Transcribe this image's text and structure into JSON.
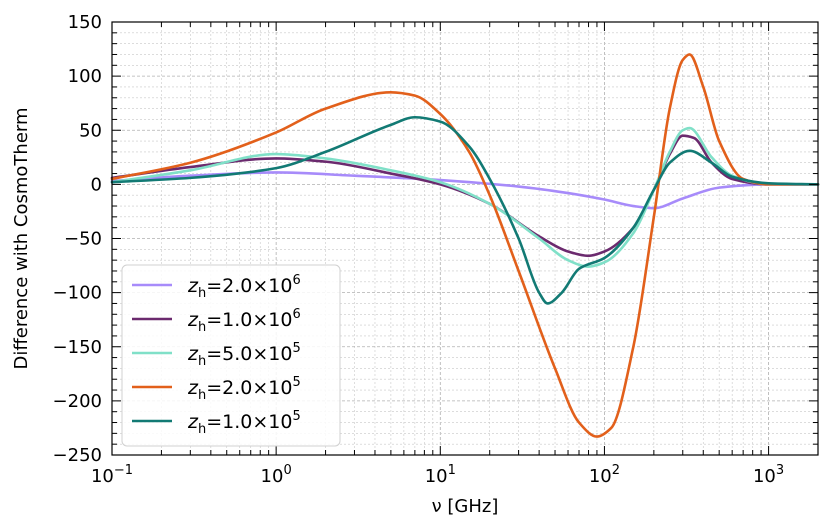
{
  "chart_data": {
    "type": "line",
    "xscale": "log",
    "xlim": [
      0.1,
      2000
    ],
    "ylim": [
      -250,
      150
    ],
    "xlabel": "ν [GHz]",
    "ylabel": "Difference with CosmoTherm",
    "grid": true,
    "legend_location": "lower-left",
    "x_ticks": [
      {
        "value": 0.1,
        "base": "10",
        "exp": "−1"
      },
      {
        "value": 1,
        "base": "10",
        "exp": "0"
      },
      {
        "value": 10,
        "base": "10",
        "exp": "1"
      },
      {
        "value": 100,
        "base": "10",
        "exp": "2"
      },
      {
        "value": 1000,
        "base": "10",
        "exp": "3"
      }
    ],
    "y_ticks": [
      {
        "value": 150,
        "label": "150"
      },
      {
        "value": 100,
        "label": "100"
      },
      {
        "value": 50,
        "label": "50"
      },
      {
        "value": 0,
        "label": "0"
      },
      {
        "value": -50,
        "label": "−50"
      },
      {
        "value": -100,
        "label": "−100"
      },
      {
        "value": -150,
        "label": "−150"
      },
      {
        "value": -200,
        "label": "−200"
      },
      {
        "value": -250,
        "label": "−250"
      }
    ],
    "series": [
      {
        "name": "z_h=2.0×10^6",
        "legend": {
          "mant": "2.0",
          "exp": "6"
        },
        "color": "#a78bfa",
        "points": [
          [
            0.1,
            3
          ],
          [
            0.3,
            8
          ],
          [
            1,
            11
          ],
          [
            3,
            8
          ],
          [
            10,
            4
          ],
          [
            30,
            -2
          ],
          [
            60,
            -8
          ],
          [
            100,
            -14
          ],
          [
            150,
            -20
          ],
          [
            200,
            -22
          ],
          [
            300,
            -13
          ],
          [
            500,
            -3
          ],
          [
            1000,
            0
          ],
          [
            2000,
            0
          ]
        ]
      },
      {
        "name": "z_h=1.0×10^6",
        "legend": {
          "mant": "1.0",
          "exp": "6"
        },
        "color": "#6b2a6e",
        "points": [
          [
            0.1,
            6
          ],
          [
            0.3,
            16
          ],
          [
            1,
            24
          ],
          [
            2,
            21
          ],
          [
            5,
            10
          ],
          [
            10,
            0
          ],
          [
            20,
            -18
          ],
          [
            40,
            -48
          ],
          [
            60,
            -62
          ],
          [
            80,
            -66
          ],
          [
            100,
            -62
          ],
          [
            150,
            -40
          ],
          [
            200,
            -5
          ],
          [
            250,
            28
          ],
          [
            300,
            45
          ],
          [
            350,
            43
          ],
          [
            450,
            20
          ],
          [
            600,
            5
          ],
          [
            1000,
            0
          ],
          [
            2000,
            0
          ]
        ]
      },
      {
        "name": "z_h=5.0×10^5",
        "legend": {
          "mant": "5.0",
          "exp": "5"
        },
        "color": "#80e0c8",
        "points": [
          [
            0.1,
            2
          ],
          [
            0.3,
            13
          ],
          [
            1,
            28
          ],
          [
            2,
            24
          ],
          [
            5,
            13
          ],
          [
            10,
            2
          ],
          [
            20,
            -18
          ],
          [
            40,
            -50
          ],
          [
            60,
            -70
          ],
          [
            80,
            -76
          ],
          [
            100,
            -72
          ],
          [
            150,
            -45
          ],
          [
            200,
            -5
          ],
          [
            250,
            30
          ],
          [
            300,
            50
          ],
          [
            330,
            52
          ],
          [
            450,
            25
          ],
          [
            600,
            8
          ],
          [
            1000,
            0
          ],
          [
            2000,
            0
          ]
        ]
      },
      {
        "name": "z_h=2.0×10^5",
        "legend": {
          "mant": "2.0",
          "exp": "5"
        },
        "color": "#e2601b",
        "points": [
          [
            0.1,
            5
          ],
          [
            0.3,
            20
          ],
          [
            1,
            48
          ],
          [
            2,
            70
          ],
          [
            5,
            85
          ],
          [
            7,
            82
          ],
          [
            10,
            65
          ],
          [
            15,
            30
          ],
          [
            20,
            -10
          ],
          [
            30,
            -80
          ],
          [
            50,
            -170
          ],
          [
            70,
            -220
          ],
          [
            90,
            -233
          ],
          [
            110,
            -225
          ],
          [
            150,
            -150
          ],
          [
            200,
            -30
          ],
          [
            250,
            70
          ],
          [
            300,
            115
          ],
          [
            330,
            120
          ],
          [
            400,
            90
          ],
          [
            500,
            40
          ],
          [
            700,
            5
          ],
          [
            1000,
            0
          ],
          [
            2000,
            0
          ]
        ]
      },
      {
        "name": "z_h=1.0×10^5",
        "legend": {
          "mant": "1.0",
          "exp": "5"
        },
        "color": "#127a74",
        "points": [
          [
            0.1,
            2
          ],
          [
            0.3,
            6
          ],
          [
            1,
            15
          ],
          [
            2,
            30
          ],
          [
            5,
            55
          ],
          [
            7,
            62
          ],
          [
            10,
            58
          ],
          [
            15,
            35
          ],
          [
            20,
            5
          ],
          [
            30,
            -50
          ],
          [
            40,
            -100
          ],
          [
            45,
            -110
          ],
          [
            55,
            -100
          ],
          [
            70,
            -78
          ],
          [
            100,
            -68
          ],
          [
            150,
            -40
          ],
          [
            200,
            -5
          ],
          [
            250,
            20
          ],
          [
            330,
            31
          ],
          [
            450,
            20
          ],
          [
            600,
            7
          ],
          [
            1000,
            1
          ],
          [
            2000,
            0
          ]
        ]
      }
    ]
  }
}
